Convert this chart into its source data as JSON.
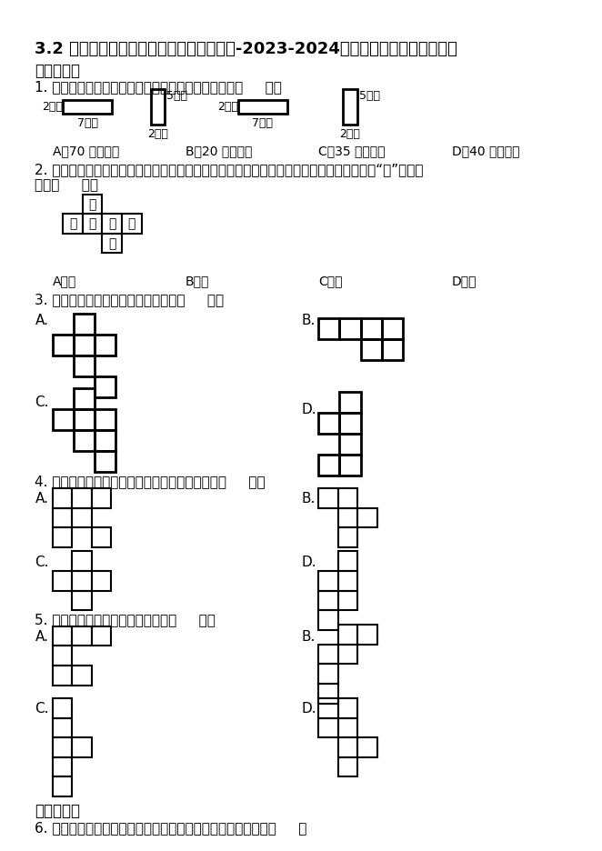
{
  "title": "3.2 长方体和正方体的表面积（同步练习）-2023-2024学年五年级下册数学人教版",
  "section1": "一、单选题",
  "q1": "1. 下面是一个长方体的四个面，另两个面的面积和是（     ）。",
  "q1_options": [
    "A．70 平方厘米",
    "B．20 平方厘米",
    "C．35 平方厘米",
    "D．40 平方厘米"
  ],
  "q2a": "2. 一个正方体的每个面上都写有一个汉字，下图是其平面展开图。那么在这个正方体中，和“成”相对的",
  "q2b": "字是（     ）。",
  "q2_options": [
    "A．自",
    "B．信",
    "C．冷",
    "D．静"
  ],
  "q3": "3. 下列图形中，不能折成正方体的是（     ）。",
  "q4": "4. 下面图形中，沿线折叠后不能围成正方体的是（     ）。",
  "q5": "5. 下面图形不是正方体展开图的是（     ）。",
  "section2": "二、判断题",
  "q6": "6. 长方体（不含正方体）的六个面中最多有两个面为正方形。（     ）",
  "bg": "#ffffff",
  "text_color": "#000000",
  "chars_grid": [
    [
      1,
      0,
      "自"
    ],
    [
      0,
      1,
      "信"
    ],
    [
      1,
      1,
      "冷"
    ],
    [
      2,
      1,
      "静"
    ],
    [
      3,
      1,
      "成"
    ],
    [
      2,
      2,
      "功"
    ]
  ],
  "label_2cm": "2厘米",
  "label_7cm": "7厘米",
  "label_5cm": "5厘米"
}
